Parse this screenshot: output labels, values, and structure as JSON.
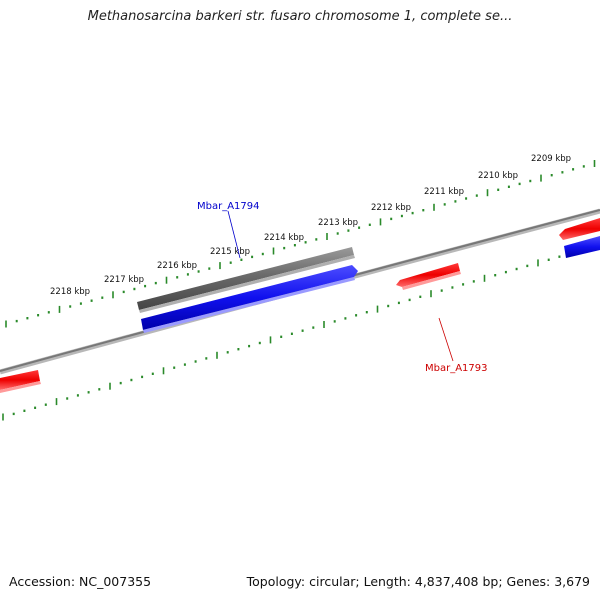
{
  "title": "Methanosarcina barkeri str. fusaro chromosome 1, complete se...",
  "footer": {
    "accession": "Accession: NC_007355",
    "summary": "Topology: circular; Length: 4,837,408 bp; Genes: 3,679"
  },
  "scale_labels": [
    "2209 kbp",
    "2210 kbp",
    "2211 kbp",
    "2212 kbp",
    "2213 kbp",
    "2214 kbp",
    "2215 kbp",
    "2216 kbp",
    "2217 kbp",
    "2218 kbp"
  ],
  "gene_labels": [
    {
      "name": "Mbar_A1794",
      "color": "#0000cc"
    },
    {
      "name": "Mbar_A1793",
      "color": "#cc0000"
    }
  ],
  "colors": {
    "backbone": "#888888",
    "tick": "#2a8a2a",
    "forward_feature": "#ff0000",
    "reverse_feature": "#0000ff",
    "gene_feature": "#666666"
  }
}
